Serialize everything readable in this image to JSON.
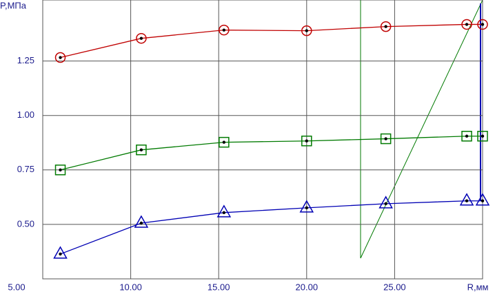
{
  "chart_data": {
    "type": "line",
    "y_label": "P,МПа",
    "x_label": "R,мм",
    "x": [
      6.0,
      10.6,
      15.3,
      20.0,
      24.5,
      29.1,
      30.0
    ],
    "series": [
      {
        "color": "#c00000",
        "marker": "circle",
        "values": [
          1.266,
          1.354,
          1.392,
          1.389,
          1.408,
          1.418,
          1.418
        ]
      },
      {
        "color": "#007a00",
        "marker": "square",
        "values": [
          0.75,
          0.842,
          0.877,
          0.883,
          0.893,
          0.905,
          0.905
        ]
      },
      {
        "color": "#0000b4",
        "marker": "triangle",
        "values": [
          0.364,
          0.506,
          0.554,
          0.576,
          0.595,
          0.608,
          0.608
        ]
      }
    ],
    "xlim": [
      5,
      30
    ],
    "ylim": [
      0.25,
      1.53
    ],
    "xticks": [
      {
        "value": 5,
        "label": "5.00"
      },
      {
        "value": 10,
        "label": "10.00"
      },
      {
        "value": 15,
        "label": "15.00"
      },
      {
        "value": 20,
        "label": "20.00"
      },
      {
        "value": 25,
        "label": "25.00"
      }
    ],
    "yticks": [
      {
        "value": 0.5,
        "label": "0.50"
      },
      {
        "value": 0.75,
        "label": "0.75"
      },
      {
        "value": 1.0,
        "label": "1.00"
      },
      {
        "value": 1.25,
        "label": "1.25"
      }
    ],
    "grid": true
  }
}
